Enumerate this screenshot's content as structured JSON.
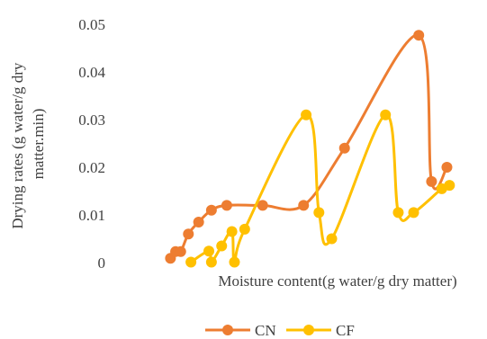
{
  "chart_data": {
    "type": "line",
    "title": "",
    "xlabel": "Moisture content(g water/g dry matter)",
    "ylabel_lines": [
      "Drying rates (g water/g dry",
      "matter.min)"
    ],
    "ylim": [
      0,
      0.05
    ],
    "yticks": [
      {
        "value": 0,
        "label": "0"
      },
      {
        "value": 0.01,
        "label": "0.01"
      },
      {
        "value": 0.02,
        "label": "0.02"
      },
      {
        "value": 0.03,
        "label": "0.03"
      },
      {
        "value": 0.04,
        "label": "0.04"
      },
      {
        "value": 0.05,
        "label": "0.05"
      }
    ],
    "grid": false,
    "smooth": true,
    "legend_position": "bottom",
    "series": [
      {
        "name": "CN",
        "color": "#ED7D31",
        "points": [
          {
            "x": 0.4,
            "y": 0.0009
          },
          {
            "x": 0.6,
            "y": 0.0023
          },
          {
            "x": 0.8,
            "y": 0.0023
          },
          {
            "x": 1.1,
            "y": 0.006
          },
          {
            "x": 1.5,
            "y": 0.0085
          },
          {
            "x": 2.0,
            "y": 0.011
          },
          {
            "x": 2.6,
            "y": 0.012
          },
          {
            "x": 4.0,
            "y": 0.012
          },
          {
            "x": 5.6,
            "y": 0.012
          },
          {
            "x": 7.2,
            "y": 0.024
          },
          {
            "x": 10.1,
            "y": 0.0477
          },
          {
            "x": 10.6,
            "y": 0.017
          },
          {
            "x": 11.2,
            "y": 0.02
          }
        ]
      },
      {
        "name": "CF",
        "color": "#FFC000",
        "points": [
          {
            "x": 1.2,
            "y": 0.0001
          },
          {
            "x": 1.9,
            "y": 0.0024
          },
          {
            "x": 2.0,
            "y": 0.0001
          },
          {
            "x": 2.4,
            "y": 0.0035
          },
          {
            "x": 2.8,
            "y": 0.0065
          },
          {
            "x": 2.9,
            "y": 0.0001
          },
          {
            "x": 3.3,
            "y": 0.007
          },
          {
            "x": 5.7,
            "y": 0.031
          },
          {
            "x": 6.2,
            "y": 0.0105
          },
          {
            "x": 6.7,
            "y": 0.005
          },
          {
            "x": 8.8,
            "y": 0.031
          },
          {
            "x": 9.3,
            "y": 0.0105
          },
          {
            "x": 9.9,
            "y": 0.0105
          },
          {
            "x": 11.0,
            "y": 0.0155
          },
          {
            "x": 11.3,
            "y": 0.0162
          }
        ]
      }
    ]
  }
}
